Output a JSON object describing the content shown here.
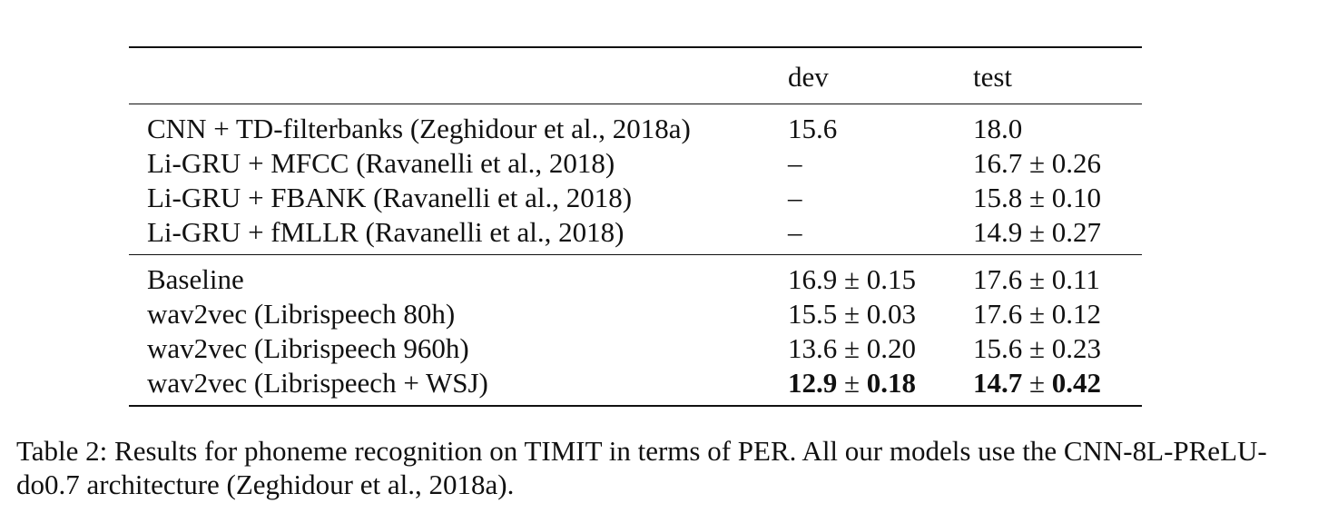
{
  "table": {
    "columns": {
      "method": "",
      "dev": "dev",
      "test": "test"
    },
    "group1": [
      {
        "method": "CNN + TD-filterbanks (Zeghidour et al., 2018a)",
        "dev": "15.6",
        "test": "18.0"
      },
      {
        "method": "Li-GRU + MFCC (Ravanelli et al., 2018)",
        "dev": "–",
        "test": "16.7 ± 0.26"
      },
      {
        "method": "Li-GRU + FBANK (Ravanelli et al., 2018)",
        "dev": "–",
        "test": "15.8 ± 0.10"
      },
      {
        "method": "Li-GRU + fMLLR (Ravanelli et al., 2018)",
        "dev": "–",
        "test": "14.9 ± 0.27"
      }
    ],
    "group2": [
      {
        "method": "Baseline",
        "dev": "16.9 ± 0.15",
        "test": "17.6 ± 0.11"
      },
      {
        "method": "wav2vec (Librispeech 80h)",
        "dev": "15.5 ± 0.03",
        "test": "17.6 ± 0.12"
      },
      {
        "method": "wav2vec (Librispeech 960h)",
        "dev": "13.6 ± 0.20",
        "test": "15.6 ± 0.23"
      },
      {
        "method": "wav2vec (Librispeech + WSJ)",
        "dev_value": "12.9",
        "dev_pm": "±",
        "dev_err": "0.18",
        "test_value": "14.7",
        "test_pm": "±",
        "test_err": "0.42"
      }
    ]
  },
  "caption": "Table 2: Results for phoneme recognition on TIMIT in terms of PER. All our models use the CNN-8L-PReLU-do0.7 architecture (Zeghidour et al., 2018a)."
}
